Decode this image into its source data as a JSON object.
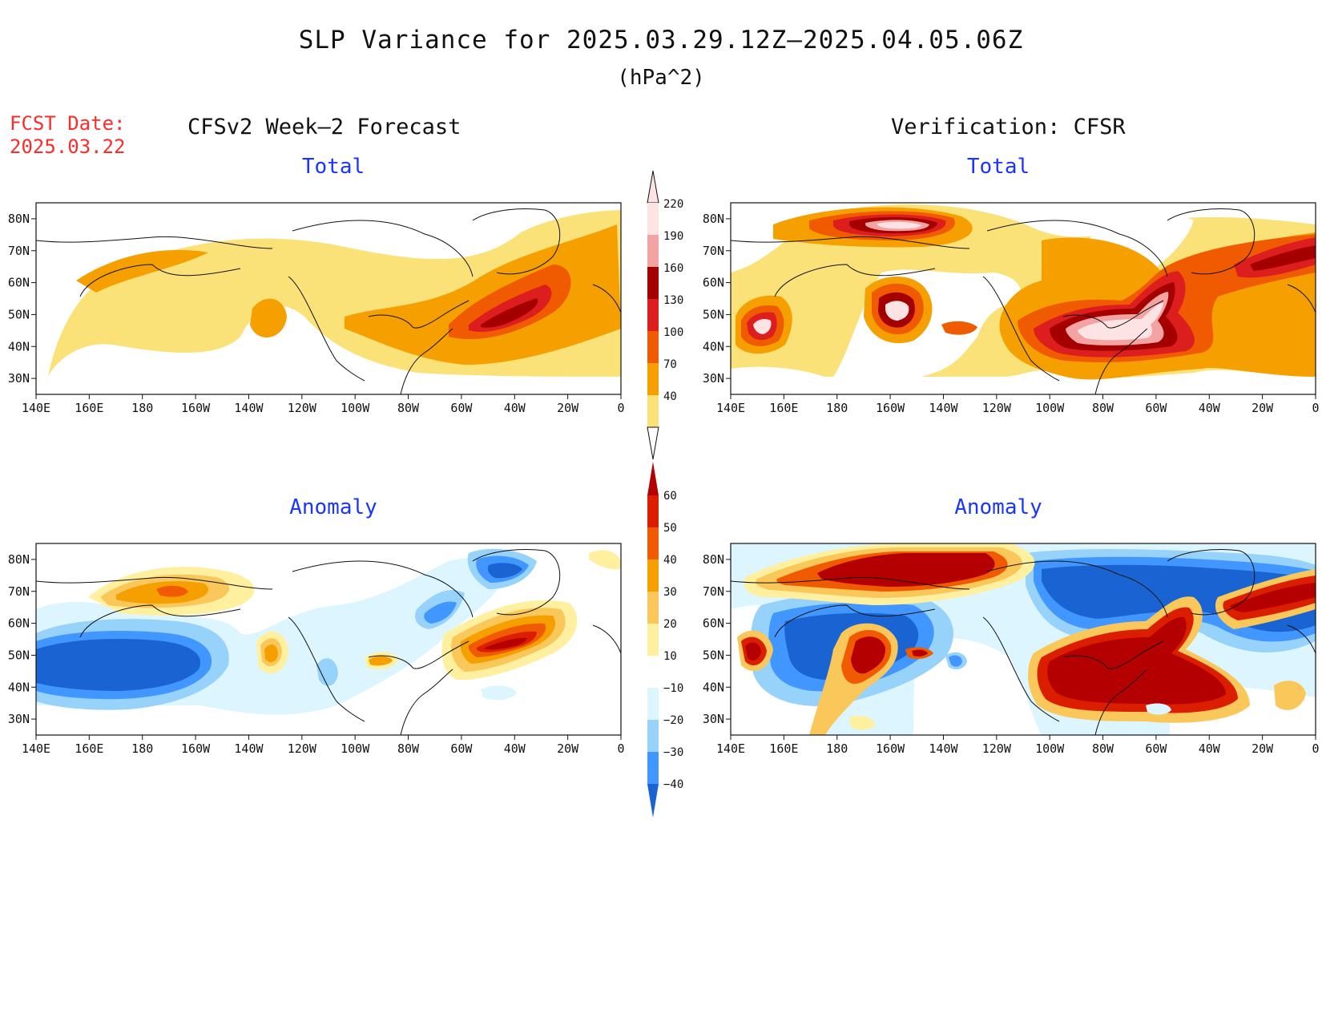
{
  "title": "SLP Variance for 2025.03.29.12Z–2025.04.05.06Z",
  "units": "(hPa^2)",
  "forecast_date": {
    "line1": "FCST Date:",
    "line2": "2025.03.22"
  },
  "columns": {
    "left": "CFSv2 Week–2 Forecast",
    "right": "Verification: CFSR"
  },
  "panels": [
    {
      "id": "forecast-total",
      "title": "Total",
      "colorbar": "total"
    },
    {
      "id": "verification-total",
      "title": "Total",
      "colorbar": "total"
    },
    {
      "id": "forecast-anomaly",
      "title": "Anomaly",
      "colorbar": "anomaly"
    },
    {
      "id": "verification-anomaly",
      "title": "Anomaly",
      "colorbar": "anomaly"
    }
  ],
  "axes": {
    "lon_labels": [
      "140E",
      "160E",
      "180",
      "160W",
      "140W",
      "120W",
      "100W",
      "80W",
      "60W",
      "40W",
      "20W",
      "0"
    ],
    "lat_labels": [
      "80N",
      "70N",
      "60N",
      "50N",
      "40N",
      "30N"
    ],
    "lat_values": [
      80,
      70,
      60,
      50,
      40,
      30
    ],
    "lat_range": [
      25,
      85
    ],
    "lon_range": [
      "140E",
      "0"
    ]
  },
  "colorbars": {
    "total": {
      "labels": [
        "220",
        "190",
        "160",
        "130",
        "100",
        "70",
        "40"
      ],
      "colors": [
        "#fde3e3",
        "#f4a3a3",
        "#a50000",
        "#dc1e1e",
        "#f05a00",
        "#f5a000",
        "#fae178"
      ],
      "top_color": "#fde3e3",
      "shape": "thin arrow ends"
    },
    "anomaly": {
      "labels": [
        "60",
        "50",
        "40",
        "30",
        "20",
        "10",
        "−10",
        "−20",
        "−30",
        "−40"
      ],
      "colors": [
        "#b40000",
        "#dc1e00",
        "#f05a00",
        "#f5a000",
        "#fac85a",
        "#fff0a0",
        "#ffffff",
        "#dcf5ff",
        "#96d2fa",
        "#4196ff",
        "#1964d2"
      ],
      "shape": "triangular ends"
    }
  },
  "fill_colors": {
    "total_levels": [
      "#fae178",
      "#f5a000",
      "#f05a00",
      "#dc1e1e",
      "#a50000",
      "#f4a3a3",
      "#fde3e3"
    ],
    "anomaly_pos": [
      "#fff0a0",
      "#fac85a",
      "#f5a000",
      "#f05a00",
      "#dc1e00",
      "#b40000"
    ],
    "anomaly_neg": [
      "#dcf5ff",
      "#96d2fa",
      "#4196ff",
      "#1964d2"
    ]
  }
}
